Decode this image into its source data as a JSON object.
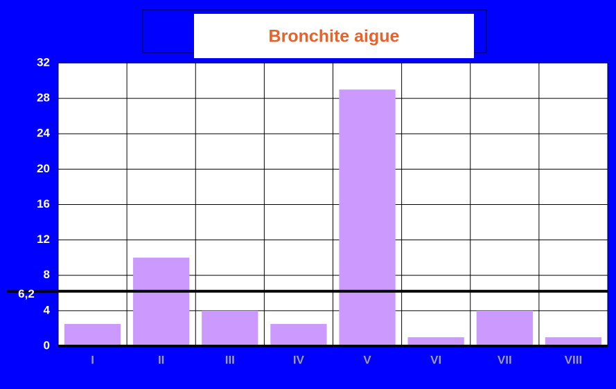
{
  "chart_data": {
    "type": "bar",
    "title": "Bronchite aigue",
    "categories": [
      "I",
      "II",
      "III",
      "IV",
      "V",
      "VI",
      "VII",
      "VIII"
    ],
    "values": [
      2.5,
      10,
      4,
      2.5,
      29,
      1,
      4,
      1
    ],
    "color": "#cc99ff",
    "ylim": [
      0,
      32
    ],
    "yticks": [
      0,
      4,
      8,
      12,
      16,
      20,
      24,
      28,
      32
    ],
    "grid": true,
    "reference_line": {
      "value": 6.2,
      "label": "6,2"
    }
  }
}
